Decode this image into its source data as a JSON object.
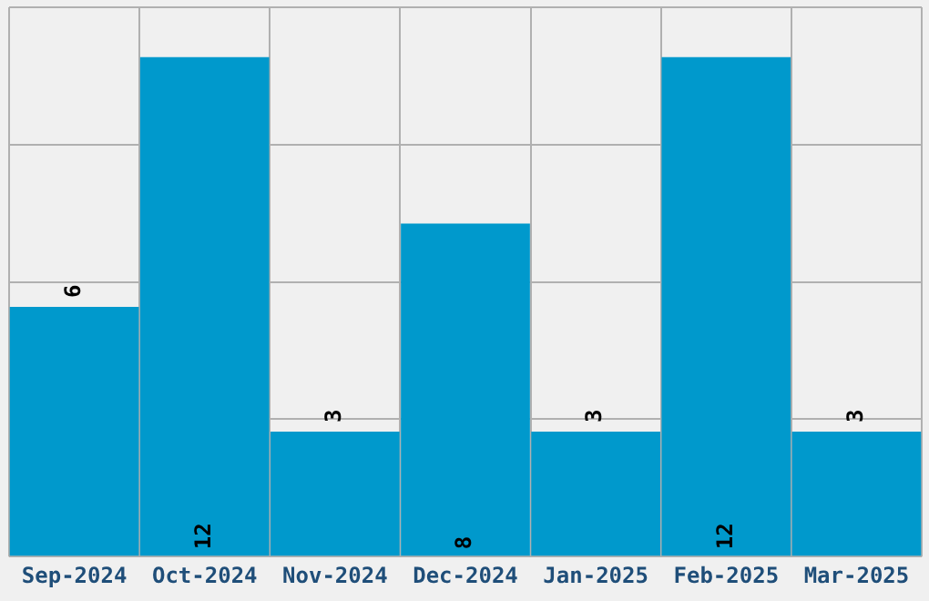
{
  "chart_data": {
    "type": "bar",
    "categories": [
      "Sep-2024",
      "Oct-2024",
      "Nov-2024",
      "Dec-2024",
      "Jan-2025",
      "Feb-2025",
      "Mar-2025"
    ],
    "values": [
      6,
      12,
      3,
      8,
      3,
      12,
      3
    ],
    "color": "#0099cc",
    "data_labels": true,
    "ylim": [
      0,
      13.2
    ],
    "yticks": [
      {
        "value": 0,
        "label": null
      },
      {
        "value": 3.3,
        "label": null
      },
      {
        "value": 6.6,
        "label": null
      },
      {
        "value": 9.9,
        "label": null
      },
      {
        "value": 13.2,
        "label": null
      }
    ],
    "grid": true,
    "tick_labels": "x",
    "legend": false
  }
}
